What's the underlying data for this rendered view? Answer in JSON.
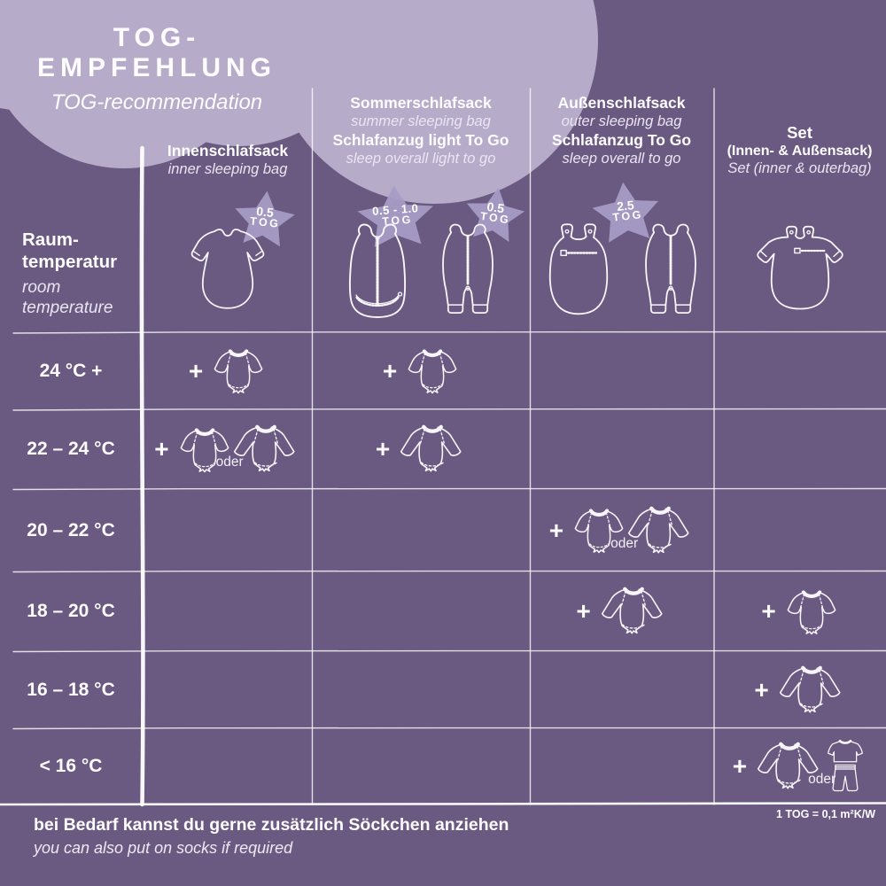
{
  "colors": {
    "background": "#6a5a81",
    "cloud": "#b6abc9",
    "star": "#a79cc5",
    "line": "#ffffff",
    "text": "#ffffff"
  },
  "header": {
    "title": "TOG-EMPFEHLUNG",
    "subtitle": "TOG-recommendation"
  },
  "row_header": {
    "de1": "Raum-",
    "de2": "temperatur",
    "en1": "room",
    "en2": "temperature"
  },
  "labels": {
    "plus": "+",
    "oder": "oder",
    "tog": "TOG"
  },
  "columns": [
    {
      "id": "innen",
      "lines": [
        {
          "text": "Innenschlafsack",
          "style": "de"
        },
        {
          "text": "inner sleeping bag",
          "style": "en"
        }
      ],
      "products": [
        {
          "icon": "bag-inner",
          "tog": "0.5"
        }
      ]
    },
    {
      "id": "sommer",
      "lines": [
        {
          "text": "Sommerschlafsack",
          "style": "de"
        },
        {
          "text": "summer sleeping bag",
          "style": "en"
        },
        {
          "text": "Schlafanzug light To Go",
          "style": "de"
        },
        {
          "text": "sleep overall light to go",
          "style": "en"
        }
      ],
      "products": [
        {
          "icon": "bag-summer",
          "tog": "0.5 - 1.0"
        },
        {
          "icon": "sleep-overall",
          "tog": "0.5"
        }
      ]
    },
    {
      "id": "aussen",
      "star_layout": "between",
      "lines": [
        {
          "text": "Außenschlafsack",
          "style": "de"
        },
        {
          "text": "outer sleeping bag",
          "style": "en"
        },
        {
          "text": "Schlafanzug To Go",
          "style": "de"
        },
        {
          "text": "sleep overall to go",
          "style": "en"
        }
      ],
      "products": [
        {
          "icon": "bag-outer",
          "tog": "2.5"
        },
        {
          "icon": "sleep-overall",
          "tog": null
        }
      ]
    },
    {
      "id": "set",
      "lines": [
        {
          "text": "Set",
          "style": "de-lg"
        },
        {
          "text": "(Innen- & Außensack)",
          "style": "de-sm"
        },
        {
          "text": "Set (inner & outerbag)",
          "style": "en"
        }
      ],
      "products": [
        {
          "icon": "bag-set",
          "tog": null
        }
      ]
    }
  ],
  "rows": [
    {
      "temp": "24 °C +",
      "cells": [
        [
          "plus",
          "bodysuit-short"
        ],
        [
          "plus",
          "bodysuit-short"
        ],
        [],
        []
      ]
    },
    {
      "temp": "22 – 24 °C",
      "cells": [
        [
          "plus",
          "bodysuit-short",
          "oder",
          "bodysuit-long"
        ],
        [
          "plus",
          "bodysuit-long"
        ],
        [],
        []
      ]
    },
    {
      "temp": "20 – 22 °C",
      "cells": [
        [],
        [],
        [
          "plus",
          "bodysuit-short",
          "oder",
          "bodysuit-long"
        ],
        []
      ]
    },
    {
      "temp": "18 – 20 °C",
      "cells": [
        [],
        [],
        [
          "plus",
          "bodysuit-long"
        ],
        [
          "plus",
          "bodysuit-short"
        ]
      ]
    },
    {
      "temp": "16 – 18 °C",
      "cells": [
        [],
        [],
        [],
        [
          "plus",
          "bodysuit-long"
        ]
      ]
    },
    {
      "temp": "< 16 °C",
      "cells": [
        [],
        [],
        [],
        [
          "plus",
          "bodysuit-long",
          "oder",
          "pajama-set"
        ]
      ]
    }
  ],
  "footnote": {
    "de": "bei Bedarf kannst du gerne zusätzlich Söckchen anziehen",
    "en": "you can also put on socks if required"
  },
  "tog_note": "1 TOG = 0,1 m²K/W"
}
